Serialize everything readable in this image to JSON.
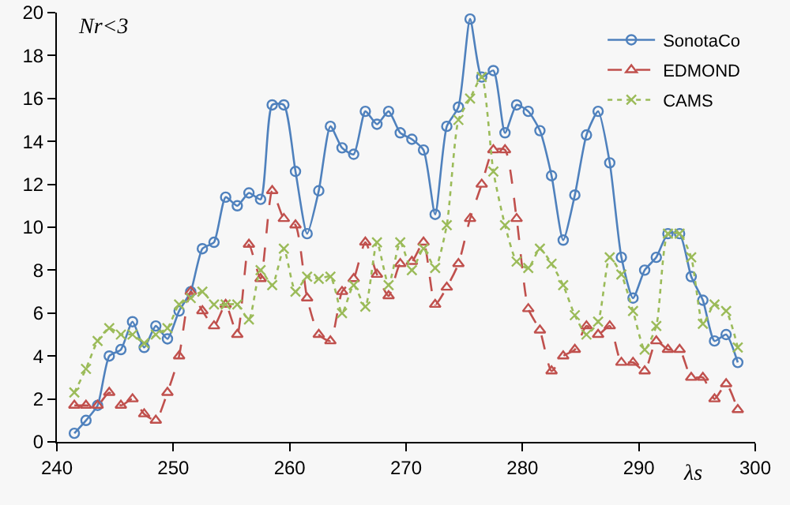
{
  "chart_data": {
    "type": "line",
    "ylabel": "Nr<3",
    "xlabel": "λs",
    "x": [
      241.5,
      242.5,
      243.5,
      244.5,
      245.5,
      246.5,
      247.5,
      248.5,
      249.5,
      250.5,
      251.5,
      252.5,
      253.5,
      254.5,
      255.5,
      256.5,
      257.5,
      258.5,
      259.5,
      260.5,
      261.5,
      262.5,
      263.5,
      264.5,
      265.5,
      266.5,
      267.5,
      268.5,
      269.5,
      270.5,
      271.5,
      272.5,
      273.5,
      274.5,
      275.5,
      276.5,
      277.5,
      278.5,
      279.5,
      280.5,
      281.5,
      282.5,
      283.5,
      284.5,
      285.5,
      286.5,
      287.5,
      288.5,
      289.5,
      290.5,
      291.5,
      292.5,
      293.5,
      294.5,
      295.5,
      296.5,
      297.5,
      298.5
    ],
    "series": [
      {
        "name": "SonotaCo",
        "color": "#4f81bd",
        "marker": "circle",
        "line_style": "solid",
        "values": [
          0.4,
          1.0,
          1.7,
          4.0,
          4.3,
          5.6,
          4.4,
          5.4,
          4.8,
          6.1,
          7.0,
          9.0,
          9.3,
          11.4,
          11.0,
          11.6,
          11.3,
          15.7,
          15.7,
          12.6,
          9.7,
          11.7,
          14.7,
          13.7,
          13.4,
          15.4,
          14.8,
          15.4,
          14.4,
          14.1,
          13.6,
          10.6,
          14.7,
          15.6,
          19.7,
          17.0,
          17.3,
          14.4,
          15.7,
          15.4,
          14.5,
          12.4,
          9.4,
          11.5,
          14.3,
          15.4,
          13.0,
          8.6,
          6.7,
          8.0,
          8.6,
          9.7,
          9.7,
          7.7,
          6.6,
          4.7,
          5.0,
          3.7
        ]
      },
      {
        "name": "EDMOND",
        "color": "#c0504d",
        "marker": "triangle",
        "line_style": "dashed",
        "values": [
          1.7,
          1.7,
          1.7,
          2.3,
          1.7,
          2.0,
          1.3,
          1.0,
          2.3,
          4.0,
          7.0,
          6.1,
          5.4,
          6.4,
          5.0,
          9.2,
          7.6,
          11.7,
          10.4,
          10.1,
          6.7,
          5.0,
          4.7,
          7.0,
          7.6,
          9.3,
          7.8,
          6.8,
          8.3,
          8.4,
          9.3,
          6.4,
          7.2,
          8.3,
          10.4,
          12.0,
          13.6,
          13.6,
          10.4,
          6.2,
          5.2,
          3.3,
          4.0,
          4.3,
          5.4,
          5.0,
          5.4,
          3.7,
          3.7,
          3.3,
          4.7,
          4.3,
          4.3,
          3.0,
          3.0,
          2.0,
          2.7,
          1.5
        ]
      },
      {
        "name": "CAMS",
        "color": "#9bbb59",
        "marker": "cross",
        "line_style": "dotted",
        "values": [
          2.3,
          3.4,
          4.7,
          5.3,
          5.0,
          5.0,
          4.6,
          5.0,
          5.3,
          6.4,
          6.7,
          7.0,
          6.4,
          6.4,
          6.4,
          5.7,
          8.0,
          7.3,
          9.0,
          7.0,
          7.7,
          7.6,
          7.7,
          6.0,
          7.3,
          6.3,
          9.3,
          7.3,
          9.3,
          8.0,
          9.0,
          8.1,
          10.1,
          15.0,
          16.0,
          17.0,
          12.6,
          10.1,
          8.4,
          8.1,
          9.0,
          8.3,
          7.3,
          5.9,
          5.0,
          5.6,
          8.6,
          7.8,
          6.1,
          4.3,
          5.4,
          9.7,
          9.7,
          8.6,
          5.5,
          6.4,
          6.1,
          4.4
        ]
      }
    ],
    "xlim": [
      240,
      300
    ],
    "xticks": [
      240,
      250,
      260,
      270,
      280,
      290,
      300
    ],
    "ylim": [
      0,
      20
    ],
    "yticks": [
      0,
      2,
      4,
      6,
      8,
      10,
      12,
      14,
      16,
      18,
      20
    ],
    "grid": false,
    "legend": "top right"
  }
}
